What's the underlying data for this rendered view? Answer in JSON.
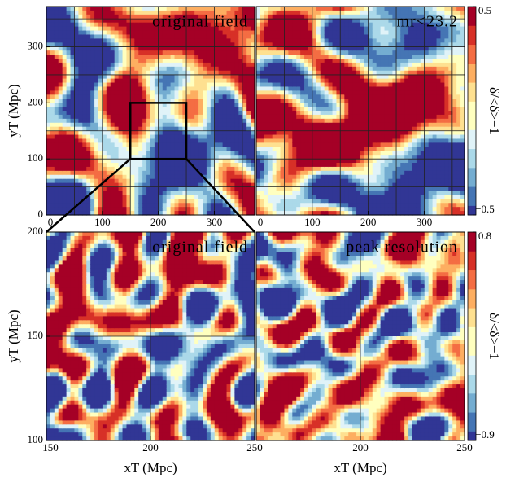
{
  "chart_data": [
    {
      "type": "heatmap",
      "annotation": "original field",
      "xlim": [
        0,
        372
      ],
      "ylim": [
        0,
        372
      ],
      "xticks": [
        0,
        100,
        200,
        300
      ],
      "yticks": [
        0,
        100,
        200,
        300
      ],
      "minor_ticks": [
        50,
        150,
        250,
        350
      ],
      "ylabel": "yT (Mpc)",
      "grid": true,
      "zoom_box": true
    },
    {
      "type": "heatmap",
      "annotation": "mr<23.2",
      "xlim": [
        0,
        372
      ],
      "ylim": [
        0,
        372
      ],
      "xticks": [
        0,
        100,
        200,
        300
      ],
      "minor_ticks": [
        50,
        150,
        250,
        350
      ],
      "grid": true,
      "colorbar": {
        "lim": [
          -0.5,
          0.5
        ],
        "ticks": [
          {
            "value": -0.5,
            "label": "−0.5"
          },
          0.5
        ],
        "label": "δ/<δ>−1"
      }
    },
    {
      "type": "heatmap",
      "annotation": "original field",
      "xlim": [
        150,
        250
      ],
      "ylim": [
        100,
        200
      ],
      "xticks": [
        150,
        200,
        250
      ],
      "yticks": [
        100,
        150,
        200
      ],
      "ylabel": "yT (Mpc)",
      "xlabel": "xT (Mpc)",
      "grid": true
    },
    {
      "type": "heatmap",
      "annotation": "peak resolution",
      "xlim": [
        150,
        250
      ],
      "ylim": [
        100,
        200
      ],
      "xticks": [
        200,
        250
      ],
      "xlabel": "xT (Mpc)",
      "grid": true,
      "colorbar": {
        "lim": [
          -0.9,
          0.8
        ],
        "ticks": [
          {
            "value": -0.9,
            "label": "−0.9"
          },
          0.8
        ],
        "label": "δ/<δ>−1"
      }
    }
  ]
}
